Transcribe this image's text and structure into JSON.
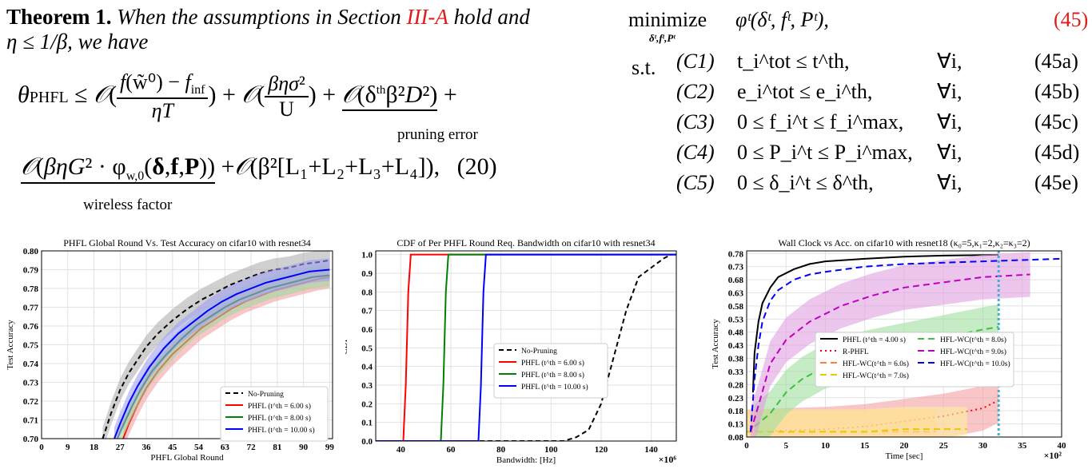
{
  "theorem": {
    "label": "Theorem 1.",
    "text_a": "When the assumptions in Section",
    "ref": "III-A",
    "text_b": "hold and",
    "cond": "η ≤ 1/β, we have",
    "eq_number": "(20)",
    "pruning_label": "pruning  error",
    "wireless_label": "wireless  factor"
  },
  "optimization": {
    "minimize_word": "minimize",
    "vars": "δᵗ,fᵗ,Pᵗ",
    "objective": "φᵗ(δᵗ, fᵗ, Pᵗ),",
    "objective_no": "(45)",
    "st": "s.t.",
    "constraints": [
      {
        "label": "(C1)",
        "expr": "t_i^tot ≤ t^th,",
        "forall": "∀i,",
        "no": "(45a)"
      },
      {
        "label": "(C2)",
        "expr": "e_i^tot ≤ e_i^th,",
        "forall": "∀i,",
        "no": "(45b)"
      },
      {
        "label": "(C3)",
        "expr": "0 ≤ f_i^t ≤ f_i^max,",
        "forall": "∀i,",
        "no": "(45c)"
      },
      {
        "label": "(C4)",
        "expr": "0 ≤ P_i^t ≤ P_i^max,",
        "forall": "∀i,",
        "no": "(45d)"
      },
      {
        "label": "(C5)",
        "expr": "0 ≤ δ_i^t ≤ δ^th,",
        "forall": "∀i,",
        "no": "(45e)"
      }
    ]
  },
  "chart_data": [
    {
      "type": "line",
      "title": "PHFL Global Round Vs. Test Accuracy on cifar10 with resnet34",
      "xlabel": "PHFL Global Round",
      "ylabel": "Test Accuracy",
      "xlim": [
        0,
        100
      ],
      "ylim": [
        0.7,
        0.8
      ],
      "xticks": [
        "0",
        "9",
        "18",
        "27",
        "36",
        "45",
        "54",
        "63",
        "72",
        "81",
        "90",
        "99"
      ],
      "yticks": [
        "0.70",
        "0.71",
        "0.72",
        "0.73",
        "0.74",
        "0.75",
        "0.76",
        "0.77",
        "0.78",
        "0.79",
        "0.80"
      ],
      "legend": "lower right",
      "series": [
        {
          "name": "No-Pruning",
          "color": "#000000",
          "dash": "6,4",
          "band": "#b0b0b0",
          "x": [
            21,
            24,
            27,
            30,
            33,
            36,
            40,
            45,
            50,
            55,
            60,
            65,
            70,
            75,
            80,
            85,
            90,
            95,
            99
          ],
          "y": [
            0.7,
            0.714,
            0.726,
            0.735,
            0.742,
            0.749,
            0.756,
            0.763,
            0.769,
            0.774,
            0.778,
            0.782,
            0.785,
            0.788,
            0.79,
            0.791,
            0.793,
            0.794,
            0.795
          ]
        },
        {
          "name": "PHFL (t^th = 6.00 s)",
          "color": "#ff0000",
          "dash": "",
          "band": "#f4a0a0",
          "x": [
            28,
            30,
            33,
            36,
            40,
            45,
            50,
            55,
            60,
            65,
            70,
            75,
            80,
            85,
            90,
            95,
            99
          ],
          "y": [
            0.7,
            0.708,
            0.718,
            0.727,
            0.736,
            0.745,
            0.752,
            0.759,
            0.764,
            0.769,
            0.773,
            0.776,
            0.779,
            0.781,
            0.783,
            0.785,
            0.786
          ]
        },
        {
          "name": "PHFL (t^th = 8.00 s)",
          "color": "#008000",
          "dash": "",
          "band": "#a0d8a0",
          "x": [
            26,
            28,
            31,
            34,
            38,
            43,
            48,
            53,
            58,
            63,
            68,
            73,
            78,
            83,
            88,
            93,
            99
          ],
          "y": [
            0.7,
            0.707,
            0.717,
            0.726,
            0.736,
            0.745,
            0.753,
            0.76,
            0.765,
            0.77,
            0.774,
            0.777,
            0.78,
            0.782,
            0.784,
            0.786,
            0.787
          ]
        },
        {
          "name": "PHFL (t^th = 10.00 s)",
          "color": "#0000ff",
          "dash": "",
          "band": "#a0a0f4",
          "x": [
            25,
            27,
            30,
            33,
            37,
            42,
            47,
            52,
            57,
            62,
            67,
            72,
            77,
            82,
            87,
            92,
            99
          ],
          "y": [
            0.7,
            0.708,
            0.719,
            0.728,
            0.738,
            0.748,
            0.756,
            0.762,
            0.768,
            0.773,
            0.777,
            0.78,
            0.783,
            0.785,
            0.787,
            0.789,
            0.79
          ]
        }
      ]
    },
    {
      "type": "line",
      "title": "CDF of Per PHFL Round Req. Bandwidth on cifar10 with resnet34",
      "xlabel": "Bandwidth: [Hz]",
      "ylabel": "CDF",
      "xmult": "×10⁶",
      "xlim": [
        30,
        150
      ],
      "ylim": [
        0,
        1.02
      ],
      "xticks": [
        "40",
        "60",
        "80",
        "100",
        "120",
        "140"
      ],
      "yticks": [
        "0.0",
        "0.1",
        "0.2",
        "0.3",
        "0.4",
        "0.5",
        "0.6",
        "0.7",
        "0.8",
        "0.9",
        "1.0"
      ],
      "legend": "center right",
      "series": [
        {
          "name": "No-Pruning",
          "color": "#000000",
          "dash": "6,4",
          "x": [
            30,
            105,
            110,
            115,
            120,
            125,
            130,
            135,
            140,
            145,
            148
          ],
          "y": [
            0,
            0,
            0.02,
            0.06,
            0.2,
            0.45,
            0.7,
            0.88,
            0.93,
            0.98,
            1.0
          ]
        },
        {
          "name": "PHFL (t^th = 6.00 s)",
          "color": "#ff0000",
          "dash": "",
          "x": [
            30,
            41,
            42,
            43,
            44,
            150
          ],
          "y": [
            0,
            0,
            0.3,
            0.8,
            1.0,
            1.0
          ]
        },
        {
          "name": "PHFL (t^th = 8.00 s)",
          "color": "#008000",
          "dash": "",
          "x": [
            30,
            56,
            57,
            58,
            59,
            150
          ],
          "y": [
            0,
            0,
            0.3,
            0.8,
            1.0,
            1.0
          ]
        },
        {
          "name": "PHFL (t^th = 10.00 s)",
          "color": "#0000ff",
          "dash": "",
          "x": [
            30,
            71,
            72,
            73,
            74,
            150
          ],
          "y": [
            0,
            0,
            0.3,
            0.8,
            1.0,
            1.0
          ]
        }
      ]
    },
    {
      "type": "line",
      "title": "Wall Clock vs Acc. on cifar10 with resnet18 (κ₀=5,κ₁=2,κ₂=κ₃=2)",
      "xlabel": "Time [sec]",
      "ylabel": "Test Accuracy",
      "xmult": "×10²",
      "xlim": [
        0,
        40
      ],
      "ylim": [
        0.08,
        0.79
      ],
      "xticks": [
        "0",
        "5",
        "10",
        "15",
        "20",
        "25",
        "30",
        "35",
        "40"
      ],
      "yticks": [
        "0.08",
        "0.13",
        "0.18",
        "0.23",
        "0.28",
        "0.33",
        "0.38",
        "0.43",
        "0.48",
        "0.53",
        "0.58",
        "0.63",
        "0.68",
        "0.73",
        "0.78"
      ],
      "vline": 32,
      "legend": "center",
      "series": [
        {
          "name": "PHFL (t^th = 4.00 s)",
          "color": "#000000",
          "dash": "",
          "x": [
            0.8,
            1,
            1.5,
            2,
            3,
            4,
            6,
            8,
            10,
            15,
            20,
            25,
            30,
            32
          ],
          "y": [
            0.25,
            0.4,
            0.52,
            0.59,
            0.65,
            0.69,
            0.72,
            0.74,
            0.75,
            0.76,
            0.768,
            0.772,
            0.774,
            0.775
          ]
        },
        {
          "name": "R-PHFL",
          "color": "#ff0000",
          "dash": "2,4",
          "band": "#f4a0a0",
          "x": [
            0,
            5,
            10,
            15,
            20,
            25,
            30,
            32
          ],
          "y": [
            0.1,
            0.105,
            0.11,
            0.12,
            0.14,
            0.16,
            0.19,
            0.22
          ]
        },
        {
          "name": "HFL-WC(t^th = 6.0s)",
          "color": "#ff8040",
          "dash": "8,5",
          "band": "#ffc080",
          "x": [
            0,
            5,
            10,
            15,
            20,
            24
          ],
          "y": [
            0.1,
            0.1,
            0.1,
            0.1,
            0.1,
            0.1
          ]
        },
        {
          "name": "HFL-WC(t^th = 7.0s)",
          "color": "#e8c800",
          "dash": "8,5",
          "band": "#fff0a0",
          "x": [
            0,
            5,
            10,
            15,
            20,
            25,
            28
          ],
          "y": [
            0.1,
            0.1,
            0.1,
            0.1,
            0.11,
            0.11,
            0.11
          ]
        },
        {
          "name": "HFL-WC(t^th = 8.0s)",
          "color": "#40c040",
          "dash": "8,5",
          "band": "#a0e0a0",
          "x": [
            1,
            3,
            5,
            7,
            10,
            15,
            20,
            25,
            30,
            32
          ],
          "y": [
            0.12,
            0.17,
            0.25,
            0.3,
            0.35,
            0.4,
            0.43,
            0.46,
            0.49,
            0.5
          ]
        },
        {
          "name": "HFL-WC(t^th = 9.0s)",
          "color": "#c000c0",
          "dash": "8,5",
          "band": "#e0a0e0",
          "x": [
            0.5,
            1.5,
            3,
            5,
            8,
            12,
            16,
            20,
            25,
            30,
            36
          ],
          "y": [
            0.1,
            0.2,
            0.36,
            0.45,
            0.52,
            0.58,
            0.62,
            0.65,
            0.67,
            0.69,
            0.7
          ]
        },
        {
          "name": "HFL-WC(t^th = 10.0s)",
          "color": "#0000ff",
          "dash": "8,5",
          "x": [
            0.5,
            1,
            1.5,
            2,
            3,
            4,
            6,
            8,
            10,
            15,
            20,
            25,
            30,
            35,
            40
          ],
          "y": [
            0.1,
            0.3,
            0.43,
            0.52,
            0.6,
            0.64,
            0.68,
            0.7,
            0.71,
            0.73,
            0.74,
            0.745,
            0.75,
            0.755,
            0.76
          ]
        }
      ]
    }
  ]
}
